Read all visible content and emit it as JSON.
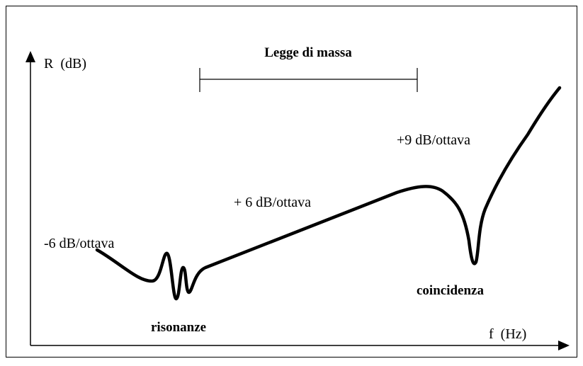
{
  "y_axis_label": "R  (dB)",
  "x_axis_label": "f  (Hz)",
  "bracket_label": "Legge di massa",
  "annotations": {
    "slope_left": "-6 dB/ottava",
    "slope_middle": "+ 6 dB/ottava",
    "slope_right": "+9 dB/ottava",
    "resonance": "risonanze",
    "coincidence": "coincidenza"
  }
}
